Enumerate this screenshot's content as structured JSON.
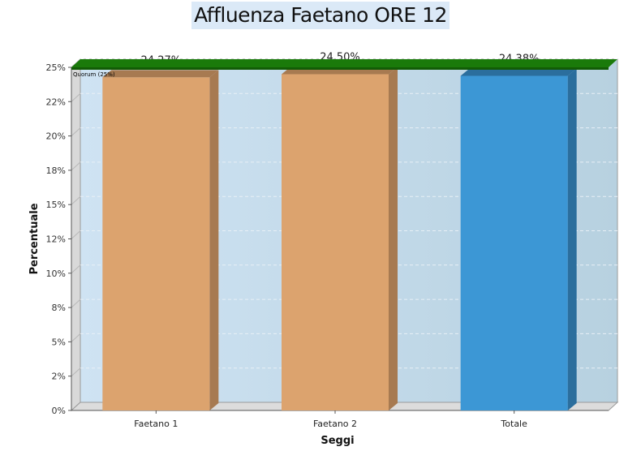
{
  "chart_data": {
    "type": "bar",
    "title": "Affluenza Faetano ORE 12",
    "xlabel": "Seggi",
    "ylabel": "Percentuale",
    "categories": [
      "Faetano 1",
      "Faetano 2",
      "Totale"
    ],
    "values": [
      24.27,
      24.5,
      24.38
    ],
    "value_labels": [
      "24,27%",
      "24,50%",
      "24,38%"
    ],
    "yticks": [
      {
        "value": 0,
        "label": "0%"
      },
      {
        "value": 2.5,
        "label": "2%"
      },
      {
        "value": 5,
        "label": "5%"
      },
      {
        "value": 7.5,
        "label": "8%"
      },
      {
        "value": 10,
        "label": "10%"
      },
      {
        "value": 12.5,
        "label": "12%"
      },
      {
        "value": 15,
        "label": "15%"
      },
      {
        "value": 17.5,
        "label": "18%"
      },
      {
        "value": 20,
        "label": "20%"
      },
      {
        "value": 22.5,
        "label": "22%"
      },
      {
        "value": 25,
        "label": "25%"
      }
    ],
    "ylim": [
      0,
      25
    ],
    "grid": true,
    "bar_colors": [
      "#dca36e",
      "#dca36e",
      "#3c97d5"
    ],
    "bar_side_colors": [
      "#a77a51",
      "#a77a51",
      "#2b6e9d"
    ],
    "reference_line": {
      "value": 25,
      "label": "Quorum (25%)",
      "color": "#1a7a0a"
    }
  }
}
